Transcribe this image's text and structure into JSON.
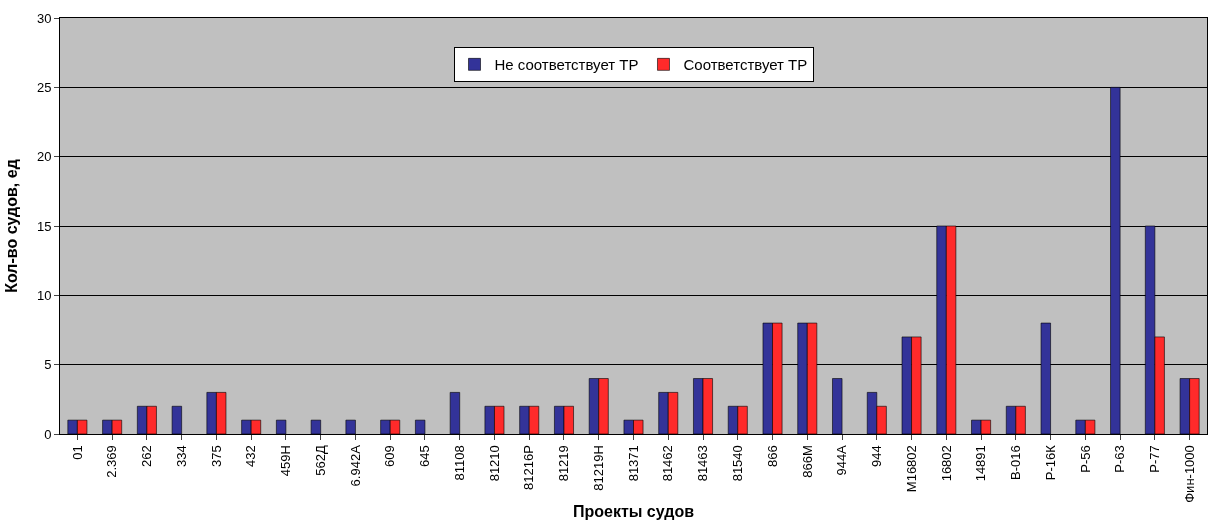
{
  "chart_data": {
    "type": "bar",
    "xlabel": "Проекты судов",
    "ylabel": "Кол-во судов, ед",
    "categories": [
      "01",
      "2.369",
      "262",
      "334",
      "375",
      "432",
      "459Н",
      "562Д",
      "6.942А",
      "609",
      "645",
      "81108",
      "81210",
      "81216Р",
      "81219",
      "81219Н",
      "81371",
      "81462",
      "81463",
      "81540",
      "866",
      "866М",
      "944А",
      "944",
      "М16802",
      "16802",
      "14891",
      "В-016",
      "Р-16К",
      "Р-56",
      "Р-63",
      "Р-77",
      "Фин-1000"
    ],
    "series": [
      {
        "name": "Не соответствует ТР",
        "color": "#333399",
        "values": [
          1,
          1,
          2,
          2,
          3,
          1,
          1,
          1,
          1,
          1,
          1,
          3,
          2,
          2,
          2,
          4,
          1,
          3,
          4,
          2,
          8,
          8,
          4,
          3,
          7,
          15,
          1,
          2,
          8,
          1,
          25,
          15,
          4
        ]
      },
      {
        "name": "Соответствует ТР",
        "color": "#ff2a2a",
        "values": [
          1,
          1,
          2,
          null,
          3,
          1,
          null,
          null,
          null,
          1,
          null,
          null,
          2,
          2,
          2,
          4,
          1,
          3,
          4,
          2,
          8,
          8,
          null,
          2,
          7,
          15,
          1,
          2,
          null,
          1,
          null,
          7,
          4
        ]
      }
    ],
    "ylim": [
      0,
      30
    ],
    "yticks": [
      0,
      5,
      10,
      15,
      20,
      25,
      30
    ],
    "grid": "y",
    "legend": "top"
  }
}
